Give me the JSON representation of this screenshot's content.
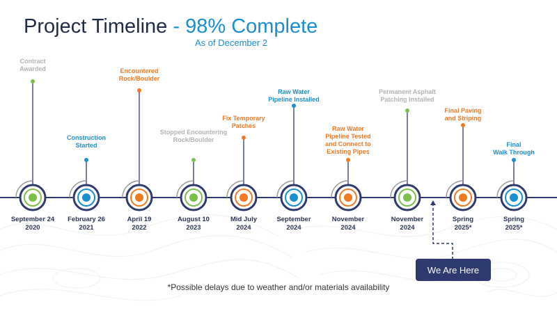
{
  "header": {
    "title_main": "Project Timeline",
    "title_accent": "- 98% Complete",
    "subtitle": "As of December 2"
  },
  "colors": {
    "navy": "#2e3a6e",
    "gray": "#b3b3b3",
    "green": "#7cc04b",
    "blue": "#1a8fd0",
    "orange": "#f07a22",
    "axis": "#2e3a6e"
  },
  "milestones": [
    {
      "label": "Contract\nAwarded",
      "date": "September 24\n2020",
      "color": "green",
      "label_color": "gray"
    },
    {
      "label": "Construction\nStarted",
      "date": "February 26\n2021",
      "color": "blue",
      "label_color": "blue"
    },
    {
      "label": "Encountered\nRock/Boulder",
      "date": "April 19\n2022",
      "color": "orange",
      "label_color": "orange"
    },
    {
      "label": "Stopped Encountering\nRock/Boulder",
      "date": "August 10\n2023",
      "color": "green",
      "label_color": "gray"
    },
    {
      "label": "Fix Temporary\nPatches",
      "date": "Mid July\n2024",
      "color": "orange",
      "label_color": "orange"
    },
    {
      "label": "Raw Water\nPipeline Installed",
      "date": "September\n2024",
      "color": "blue",
      "label_color": "blue"
    },
    {
      "label": "Raw Water\nPipeline Tested\nand Connect to\nExisting Pipes",
      "date": "November\n2024",
      "color": "orange",
      "label_color": "orange"
    },
    {
      "label": "Permanent Asphalt\nPatching Installed",
      "date": "November\n2024",
      "color": "green",
      "label_color": "gray"
    },
    {
      "label": "Final Paving\nand Striping",
      "date": "Spring\n2025*",
      "color": "orange",
      "label_color": "orange"
    },
    {
      "label": "Final\nWalk Through",
      "date": "Spring\n2025*",
      "color": "blue",
      "label_color": "blue"
    }
  ],
  "current_marker": {
    "label": "We Are Here"
  },
  "footnote": "*Possible delays due to weather and/or materials availability"
}
